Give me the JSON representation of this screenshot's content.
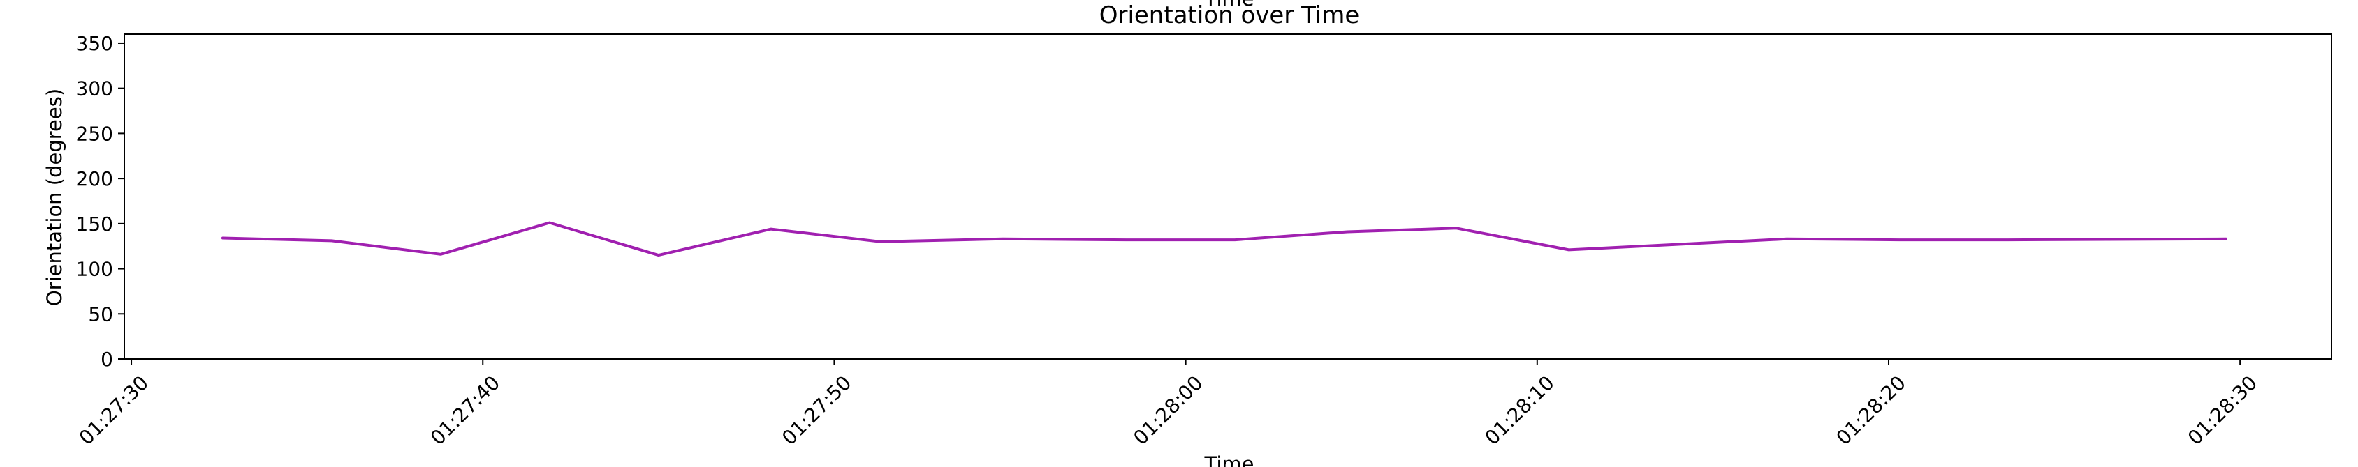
{
  "chart_data": {
    "type": "line",
    "title": "Orientation over Time",
    "top_clipped_text": "Time",
    "xlabel": "Time",
    "ylabel": "Orientation (degrees)",
    "ylim": [
      0,
      360
    ],
    "yticks": [
      0,
      50,
      100,
      150,
      200,
      250,
      300,
      350
    ],
    "xlim": [
      "01:27:29.8",
      "01:28:32.6"
    ],
    "xticks": [
      "01:27:30",
      "01:27:40",
      "01:27:50",
      "01:28:00",
      "01:28:10",
      "01:28:20",
      "01:28:30"
    ],
    "grid": false,
    "color": "#a020b0",
    "series": [
      {
        "x": [
          "01:27:32.6",
          "01:27:35.7",
          "01:27:38.8",
          "01:27:41.9",
          "01:27:45.0",
          "01:27:48.2",
          "01:27:51.3",
          "01:27:54.8",
          "01:27:58.3",
          "01:28:01.4",
          "01:28:04.6",
          "01:28:07.7",
          "01:28:10.9",
          "01:28:17.1",
          "01:28:20.3",
          "01:28:23.4",
          "01:28:29.6"
        ],
        "values": [
          134,
          131,
          116,
          151,
          115,
          144,
          130,
          133,
          132,
          132,
          141,
          145,
          121,
          133,
          132,
          132,
          133
        ]
      }
    ]
  }
}
